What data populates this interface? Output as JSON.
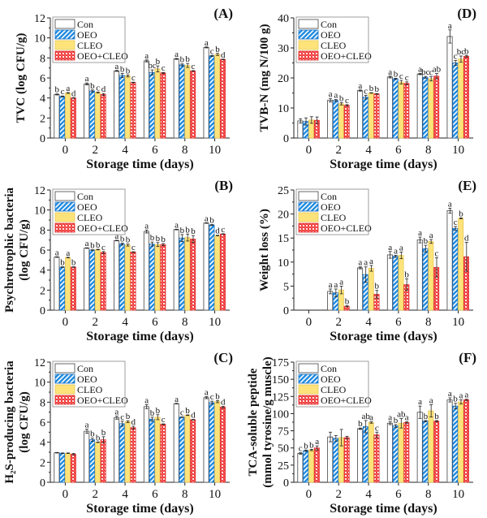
{
  "legend": [
    "Con",
    "OEO",
    "CLEO",
    "OEO+CLEO"
  ],
  "colors": {
    "con": "#ffffff",
    "oeo": "#1e8ae0",
    "cleo": "#fde37a",
    "combo": "#f03b3b",
    "stroke": "#333333"
  },
  "chart_data": [
    {
      "id": "A",
      "type": "bar",
      "panel_label": "(A)",
      "ylabel": [
        "TVC (log CFU/g)"
      ],
      "xlabel": "Storage time (days)",
      "categories": [
        "0",
        "2",
        "4",
        "6",
        "8",
        "10"
      ],
      "ylim": [
        0,
        12
      ],
      "yticks": [
        0,
        2,
        4,
        6,
        8,
        10,
        12
      ],
      "series": [
        {
          "name": "Con",
          "values": [
            4.35,
            5.4,
            6.7,
            7.7,
            7.9,
            9.05
          ],
          "errors": [
            0.05,
            0.1,
            0.05,
            0.1,
            0.05,
            0.05
          ],
          "letters": [
            "b",
            "a",
            "a",
            "a",
            "a",
            "a"
          ]
        },
        {
          "name": "OEO",
          "values": [
            4.15,
            4.7,
            6.25,
            6.55,
            7.3,
            8.2
          ],
          "errors": [
            0.05,
            0.1,
            0.2,
            0.25,
            0.1,
            0.05
          ],
          "letters": [
            "c",
            "b",
            "b",
            "bc",
            "b",
            "c"
          ]
        },
        {
          "name": "CLEO",
          "values": [
            4.5,
            4.55,
            6.2,
            6.9,
            7.25,
            8.35
          ],
          "errors": [
            0.05,
            0.05,
            0.1,
            0.3,
            0.2,
            0.1
          ],
          "letters": [
            "a",
            "c",
            "b",
            "b",
            "b",
            "b"
          ]
        },
        {
          "name": "OEO+CLEO",
          "values": [
            4.0,
            4.35,
            5.55,
            6.5,
            6.7,
            7.85
          ],
          "errors": [
            0.03,
            0.1,
            0.03,
            0.05,
            0.03,
            0.03
          ],
          "letters": [
            "d",
            "d",
            "c",
            "c",
            "c",
            "d"
          ]
        }
      ]
    },
    {
      "id": "D",
      "type": "bar",
      "panel_label": "(D)",
      "ylabel": [
        "TVB-N (mg N/100 g)"
      ],
      "xlabel": "Storage time (days)",
      "categories": [
        "0",
        "2",
        "4",
        "6",
        "8",
        "10"
      ],
      "ylim": [
        0,
        40
      ],
      "yticks": [
        0,
        10,
        20,
        30,
        40
      ],
      "series": [
        {
          "name": "Con",
          "values": [
            5.7,
            12.6,
            15.8,
            20.3,
            21.3,
            33.8
          ],
          "errors": [
            0.7,
            0.6,
            0.2,
            0.3,
            0.2,
            2.2
          ],
          "letters": [
            "",
            "a",
            "a",
            "a",
            "a",
            ""
          ]
        },
        {
          "name": "OEO",
          "values": [
            5.5,
            12.5,
            13.6,
            19.7,
            20.2,
            25.0
          ],
          "errors": [
            1.2,
            0.3,
            0.6,
            0.2,
            0.3,
            0.8
          ],
          "letters": [
            "",
            "a",
            "c",
            "b",
            "bc",
            "c"
          ]
        },
        {
          "name": "CLEO",
          "values": [
            6.0,
            11.4,
            15.0,
            18.6,
            19.7,
            26.3
          ],
          "errors": [
            1.1,
            0.4,
            0.1,
            0.6,
            0.7,
            1.0
          ],
          "letters": [
            "",
            "b",
            "b",
            "c",
            "c",
            "bc"
          ]
        },
        {
          "name": "OEO+CLEO",
          "values": [
            5.9,
            10.9,
            14.7,
            18.2,
            20.6,
            27.2
          ],
          "errors": [
            1.1,
            0.2,
            0.1,
            0.5,
            0.9,
            0.3
          ],
          "letters": [
            "",
            "c",
            "b",
            "c",
            "ab",
            "b"
          ]
        }
      ],
      "top_letters": [
        {
          "group": 5,
          "series": 0,
          "text": "a"
        }
      ]
    },
    {
      "id": "B",
      "type": "bar",
      "panel_label": "(B)",
      "ylabel": [
        "Psychrotrophic bacteria",
        "(log CFU/g)"
      ],
      "xlabel": "Storage time (days)",
      "categories": [
        "0",
        "2",
        "4",
        "6",
        "8",
        "10"
      ],
      "ylim": [
        0,
        12
      ],
      "yticks": [
        0,
        2,
        4,
        6,
        8,
        10,
        12
      ],
      "series": [
        {
          "name": "Con",
          "values": [
            5.3,
            6.2,
            6.95,
            7.85,
            8.05,
            8.7
          ],
          "errors": [
            0.03,
            0.03,
            0.03,
            0.15,
            0.03,
            0.03
          ],
          "letters": [
            "a",
            "a",
            "a",
            "a",
            "a",
            "a"
          ]
        },
        {
          "name": "OEO",
          "values": [
            4.3,
            6.0,
            6.6,
            6.6,
            7.2,
            8.5
          ],
          "errors": [
            0.03,
            0.03,
            0.1,
            0.2,
            0.35,
            0.05
          ],
          "letters": [
            "b",
            "b",
            "b",
            "b",
            "b",
            "b"
          ]
        },
        {
          "name": "CLEO",
          "values": [
            5.25,
            6.05,
            6.5,
            6.55,
            7.25,
            7.45
          ],
          "errors": [
            0.03,
            0.03,
            0.1,
            0.2,
            0.35,
            0.03
          ],
          "letters": [
            "a",
            "b",
            "b",
            "b",
            "b",
            "d"
          ]
        },
        {
          "name": "OEO+CLEO",
          "values": [
            4.3,
            5.75,
            5.8,
            6.55,
            7.1,
            7.6
          ],
          "errors": [
            0.03,
            0.1,
            0.03,
            0.1,
            0.35,
            0.03
          ],
          "letters": [
            "b",
            "c",
            "c",
            "b",
            "b",
            "c"
          ]
        }
      ]
    },
    {
      "id": "E",
      "type": "bar",
      "panel_label": "(E)",
      "ylabel": [
        "Weight loss (%)"
      ],
      "xlabel": "Storage time (days)",
      "categories": [
        "0",
        "2",
        "4",
        "6",
        "8",
        "10"
      ],
      "ylim": [
        0,
        25
      ],
      "yticks": [
        0,
        5,
        10,
        15,
        20,
        25
      ],
      "series": [
        {
          "name": "Con",
          "values": [
            0,
            3.9,
            8.8,
            11.5,
            14.6,
            20.7
          ],
          "errors": [
            0,
            0.5,
            0.2,
            0.7,
            0.6,
            0.5
          ],
          "letters": [
            "",
            "a",
            "a",
            "a",
            "a",
            "a"
          ]
        },
        {
          "name": "OEO",
          "values": [
            0,
            3.6,
            7.4,
            11.2,
            12.8,
            17.0
          ],
          "errors": [
            0,
            0.8,
            1.6,
            0.2,
            0.7,
            0.4
          ],
          "letters": [
            "",
            "a",
            "a",
            "a",
            "b",
            "c"
          ]
        },
        {
          "name": "CLEO",
          "values": [
            0,
            4.2,
            8.7,
            11.4,
            14.3,
            19.1
          ],
          "errors": [
            0,
            0.8,
            0.6,
            0.7,
            0.4,
            0.1
          ],
          "letters": [
            "",
            "a",
            "a",
            "a",
            "a",
            "b"
          ]
        },
        {
          "name": "OEO+CLEO",
          "values": [
            0,
            0.8,
            3.3,
            5.3,
            8.9,
            11.1
          ],
          "errors": [
            0,
            0.1,
            0.8,
            1.2,
            2.0,
            3.0
          ],
          "letters": [
            "",
            "b",
            "b",
            "b",
            "c",
            "d"
          ]
        }
      ]
    },
    {
      "id": "C",
      "type": "bar",
      "panel_label": "(C)",
      "ylabel": [
        "H₂S-producing bacteria",
        "(log CFU/g)"
      ],
      "xlabel": "Storage time (days)",
      "categories": [
        "0",
        "2",
        "4",
        "6",
        "8",
        "10"
      ],
      "ylim": [
        0,
        12
      ],
      "yticks": [
        0,
        2,
        4,
        6,
        8,
        10,
        12
      ],
      "series": [
        {
          "name": "Con",
          "values": [
            2.95,
            5.1,
            6.45,
            7.55,
            7.85,
            8.45
          ],
          "errors": [
            0.03,
            0.2,
            0.15,
            0.2,
            0.03,
            0.1
          ],
          "letters": [
            "",
            "a",
            "a",
            "a",
            "a",
            "a"
          ]
        },
        {
          "name": "OEO",
          "values": [
            2.9,
            4.25,
            5.85,
            6.3,
            6.5,
            7.95
          ],
          "errors": [
            0.03,
            0.15,
            0.25,
            0.2,
            0.03,
            0.15
          ],
          "letters": [
            "",
            "b",
            "c",
            "b",
            "c",
            "c"
          ]
        },
        {
          "name": "CLEO",
          "values": [
            2.9,
            4.0,
            6.05,
            6.5,
            6.7,
            8.05
          ],
          "errors": [
            0.03,
            0.03,
            0.1,
            0.25,
            0.03,
            0.1
          ],
          "letters": [
            "",
            "b",
            "b",
            "b",
            "b",
            "b"
          ]
        },
        {
          "name": "OEO+CLEO",
          "values": [
            2.8,
            4.25,
            5.45,
            5.8,
            6.25,
            7.5
          ],
          "errors": [
            0.08,
            0.3,
            0.15,
            0.03,
            0.03,
            0.08
          ],
          "letters": [
            "",
            "b",
            "d",
            "c",
            "d",
            "d"
          ]
        }
      ]
    },
    {
      "id": "F",
      "type": "bar",
      "panel_label": "(F)",
      "ylabel": [
        "TCA-soluble peptide",
        "(mmol tyrosine/g muscle)"
      ],
      "xlabel": "Storage time (days)",
      "categories": [
        "0",
        "2",
        "4",
        "6",
        "8",
        "10"
      ],
      "ylim": [
        0,
        175
      ],
      "yticks": [
        0,
        25,
        50,
        75,
        100,
        125,
        150,
        175
      ],
      "series": [
        {
          "name": "Con",
          "values": [
            42,
            66,
            78,
            86,
            102,
            120
          ],
          "errors": [
            1,
            7,
            1,
            2,
            9,
            3
          ],
          "letters": [
            "c",
            "",
            "b",
            "a",
            "a",
            "a"
          ]
        },
        {
          "name": "OEO",
          "values": [
            46,
            64,
            81,
            82,
            89,
            111
          ],
          "errors": [
            1,
            4,
            9,
            2,
            1,
            4
          ],
          "letters": [
            "b",
            "",
            "ab",
            "b",
            "b",
            "b"
          ]
        },
        {
          "name": "CLEO",
          "values": [
            47,
            65,
            87,
            86,
            104,
            117
          ],
          "errors": [
            1,
            12,
            1,
            7,
            9,
            3
          ],
          "letters": [
            "b",
            "",
            "a",
            "ab",
            "a",
            "a"
          ]
        },
        {
          "name": "OEO+CLEO",
          "values": [
            50,
            65,
            69,
            87,
            89,
            120
          ],
          "errors": [
            3,
            2,
            4,
            1,
            1,
            1
          ],
          "letters": [
            "a",
            "",
            "c",
            "a",
            "b",
            "a"
          ]
        }
      ]
    }
  ]
}
